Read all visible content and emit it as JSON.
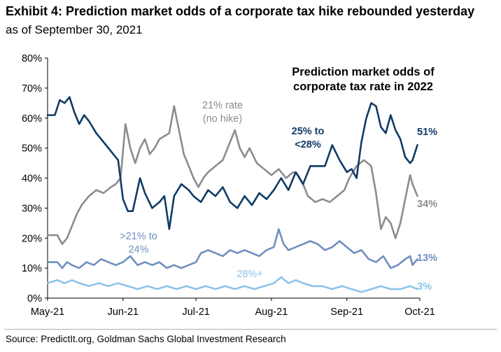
{
  "title": "Exhibit 4: Prediction market odds of a corporate tax hike rebounded yesterday",
  "subtitle": "as of September 30, 2021",
  "source": "Source: PredictIt.org, Goldman Sachs Global Investment Research",
  "chart_data": {
    "type": "line",
    "title": [
      "Prediction market odds of",
      "corporate tax rate in 2022"
    ],
    "xlabel": "",
    "ylabel": "",
    "ylim": [
      0,
      80
    ],
    "grid": false,
    "y_ticks": [
      "0%",
      "10%",
      "20%",
      "30%",
      "40%",
      "50%",
      "60%",
      "70%",
      "80%"
    ],
    "x_ticks": [
      "May-21",
      "Jun-21",
      "Jul-21",
      "Aug-21",
      "Sep-21",
      "Oct-21"
    ],
    "x_tick_dates": [
      "2021-05-01",
      "2021-06-01",
      "2021-07-01",
      "2021-08-01",
      "2021-09-01",
      "2021-10-01"
    ],
    "series": [
      {
        "name": "21% rate (no hike)",
        "label": [
          "21% rate",
          "(no hike)"
        ],
        "color": "#8c8c8c",
        "end_label": "34%",
        "points": [
          [
            "2021-05-01",
            21
          ],
          [
            "2021-05-05",
            21
          ],
          [
            "2021-05-07",
            18
          ],
          [
            "2021-05-09",
            20
          ],
          [
            "2021-05-11",
            24
          ],
          [
            "2021-05-13",
            28
          ],
          [
            "2021-05-15",
            31
          ],
          [
            "2021-05-18",
            34
          ],
          [
            "2021-05-21",
            36
          ],
          [
            "2021-05-24",
            35
          ],
          [
            "2021-05-27",
            37
          ],
          [
            "2021-05-29",
            38
          ],
          [
            "2021-05-31",
            40
          ],
          [
            "2021-06-02",
            58
          ],
          [
            "2021-06-04",
            50
          ],
          [
            "2021-06-06",
            45
          ],
          [
            "2021-06-08",
            50
          ],
          [
            "2021-06-10",
            53
          ],
          [
            "2021-06-12",
            48
          ],
          [
            "2021-06-14",
            50
          ],
          [
            "2021-06-16",
            53
          ],
          [
            "2021-06-18",
            54
          ],
          [
            "2021-06-20",
            55
          ],
          [
            "2021-06-22",
            64
          ],
          [
            "2021-06-24",
            56
          ],
          [
            "2021-06-26",
            48
          ],
          [
            "2021-06-28",
            44
          ],
          [
            "2021-06-30",
            40
          ],
          [
            "2021-07-02",
            37
          ],
          [
            "2021-07-04",
            40
          ],
          [
            "2021-07-06",
            42
          ],
          [
            "2021-07-09",
            44
          ],
          [
            "2021-07-12",
            46
          ],
          [
            "2021-07-15",
            52
          ],
          [
            "2021-07-17",
            56
          ],
          [
            "2021-07-19",
            50
          ],
          [
            "2021-07-21",
            47
          ],
          [
            "2021-07-23",
            50
          ],
          [
            "2021-07-26",
            45
          ],
          [
            "2021-07-29",
            43
          ],
          [
            "2021-08-01",
            41
          ],
          [
            "2021-08-04",
            43
          ],
          [
            "2021-08-07",
            40
          ],
          [
            "2021-08-10",
            42
          ],
          [
            "2021-08-12",
            41
          ],
          [
            "2021-08-14",
            38
          ],
          [
            "2021-08-16",
            34
          ],
          [
            "2021-08-19",
            32
          ],
          [
            "2021-08-22",
            33
          ],
          [
            "2021-08-25",
            32
          ],
          [
            "2021-08-28",
            34
          ],
          [
            "2021-08-31",
            36
          ],
          [
            "2021-09-02",
            40
          ],
          [
            "2021-09-05",
            44
          ],
          [
            "2021-09-08",
            46
          ],
          [
            "2021-09-11",
            44
          ],
          [
            "2021-09-13",
            35
          ],
          [
            "2021-09-15",
            23
          ],
          [
            "2021-09-17",
            27
          ],
          [
            "2021-09-19",
            25
          ],
          [
            "2021-09-21",
            20
          ],
          [
            "2021-09-23",
            25
          ],
          [
            "2021-09-25",
            33
          ],
          [
            "2021-09-27",
            41
          ],
          [
            "2021-09-28",
            38
          ],
          [
            "2021-09-30",
            34
          ]
        ]
      },
      {
        "name": "25% to <28%",
        "label": [
          "25% to",
          "<28%"
        ],
        "color": "#0f3b66",
        "end_label": "51%",
        "points": [
          [
            "2021-05-01",
            61
          ],
          [
            "2021-05-04",
            61
          ],
          [
            "2021-05-06",
            66
          ],
          [
            "2021-05-08",
            65
          ],
          [
            "2021-05-10",
            67
          ],
          [
            "2021-05-12",
            62
          ],
          [
            "2021-05-14",
            58
          ],
          [
            "2021-05-16",
            61
          ],
          [
            "2021-05-18",
            59
          ],
          [
            "2021-05-21",
            55
          ],
          [
            "2021-05-24",
            52
          ],
          [
            "2021-05-27",
            49
          ],
          [
            "2021-05-30",
            46
          ],
          [
            "2021-06-01",
            33
          ],
          [
            "2021-06-03",
            29
          ],
          [
            "2021-06-05",
            29
          ],
          [
            "2021-06-08",
            40
          ],
          [
            "2021-06-10",
            35
          ],
          [
            "2021-06-13",
            30
          ],
          [
            "2021-06-16",
            32
          ],
          [
            "2021-06-18",
            34
          ],
          [
            "2021-06-20",
            23
          ],
          [
            "2021-06-22",
            34
          ],
          [
            "2021-06-25",
            38
          ],
          [
            "2021-06-28",
            36
          ],
          [
            "2021-06-30",
            34
          ],
          [
            "2021-07-03",
            32
          ],
          [
            "2021-07-06",
            36
          ],
          [
            "2021-07-09",
            34
          ],
          [
            "2021-07-12",
            37
          ],
          [
            "2021-07-15",
            32
          ],
          [
            "2021-07-18",
            30
          ],
          [
            "2021-07-21",
            34
          ],
          [
            "2021-07-24",
            31
          ],
          [
            "2021-07-27",
            35
          ],
          [
            "2021-07-30",
            33
          ],
          [
            "2021-08-02",
            36
          ],
          [
            "2021-08-05",
            40
          ],
          [
            "2021-08-08",
            36
          ],
          [
            "2021-08-11",
            42
          ],
          [
            "2021-08-14",
            38
          ],
          [
            "2021-08-17",
            44
          ],
          [
            "2021-08-20",
            44
          ],
          [
            "2021-08-23",
            44
          ],
          [
            "2021-08-26",
            51
          ],
          [
            "2021-08-29",
            46
          ],
          [
            "2021-09-01",
            42
          ],
          [
            "2021-09-03",
            43
          ],
          [
            "2021-09-05",
            40
          ],
          [
            "2021-09-07",
            52
          ],
          [
            "2021-09-09",
            60
          ],
          [
            "2021-09-11",
            65
          ],
          [
            "2021-09-13",
            64
          ],
          [
            "2021-09-15",
            57
          ],
          [
            "2021-09-17",
            55
          ],
          [
            "2021-09-19",
            61
          ],
          [
            "2021-09-21",
            56
          ],
          [
            "2021-09-23",
            53
          ],
          [
            "2021-09-25",
            47
          ],
          [
            "2021-09-27",
            45
          ],
          [
            "2021-09-28",
            46
          ],
          [
            "2021-09-30",
            51
          ]
        ]
      },
      {
        "name": ">21% to 24%",
        "label": [
          ">21% to",
          "24%"
        ],
        "color": "#6f8fbf",
        "end_label": "13%",
        "points": [
          [
            "2021-05-01",
            12
          ],
          [
            "2021-05-05",
            12
          ],
          [
            "2021-05-07",
            10
          ],
          [
            "2021-05-09",
            12
          ],
          [
            "2021-05-11",
            11
          ],
          [
            "2021-05-14",
            10
          ],
          [
            "2021-05-17",
            12
          ],
          [
            "2021-05-20",
            11
          ],
          [
            "2021-05-23",
            13
          ],
          [
            "2021-05-26",
            12
          ],
          [
            "2021-05-29",
            11
          ],
          [
            "2021-06-01",
            12
          ],
          [
            "2021-06-04",
            14
          ],
          [
            "2021-06-07",
            11
          ],
          [
            "2021-06-10",
            12
          ],
          [
            "2021-06-13",
            11
          ],
          [
            "2021-06-16",
            12
          ],
          [
            "2021-06-19",
            10
          ],
          [
            "2021-06-22",
            11
          ],
          [
            "2021-06-25",
            10
          ],
          [
            "2021-06-28",
            11
          ],
          [
            "2021-07-01",
            12
          ],
          [
            "2021-07-03",
            15
          ],
          [
            "2021-07-06",
            16
          ],
          [
            "2021-07-09",
            15
          ],
          [
            "2021-07-12",
            14
          ],
          [
            "2021-07-15",
            16
          ],
          [
            "2021-07-18",
            15
          ],
          [
            "2021-07-21",
            16
          ],
          [
            "2021-07-24",
            15
          ],
          [
            "2021-07-27",
            14
          ],
          [
            "2021-07-30",
            16
          ],
          [
            "2021-08-02",
            17
          ],
          [
            "2021-08-04",
            23
          ],
          [
            "2021-08-06",
            18
          ],
          [
            "2021-08-08",
            16
          ],
          [
            "2021-08-11",
            17
          ],
          [
            "2021-08-14",
            18
          ],
          [
            "2021-08-17",
            19
          ],
          [
            "2021-08-20",
            18
          ],
          [
            "2021-08-23",
            16
          ],
          [
            "2021-08-26",
            17
          ],
          [
            "2021-08-29",
            19
          ],
          [
            "2021-09-01",
            17
          ],
          [
            "2021-09-04",
            15
          ],
          [
            "2021-09-07",
            16
          ],
          [
            "2021-09-10",
            13
          ],
          [
            "2021-09-13",
            12
          ],
          [
            "2021-09-16",
            14
          ],
          [
            "2021-09-19",
            10
          ],
          [
            "2021-09-22",
            11
          ],
          [
            "2021-09-25",
            13
          ],
          [
            "2021-09-27",
            14
          ],
          [
            "2021-09-28",
            11
          ],
          [
            "2021-09-30",
            13
          ]
        ]
      },
      {
        "name": "28%+",
        "label": [
          "28%+"
        ],
        "color": "#8dc3e8",
        "end_label": "3%",
        "points": [
          [
            "2021-05-01",
            5
          ],
          [
            "2021-05-05",
            6
          ],
          [
            "2021-05-08",
            5
          ],
          [
            "2021-05-11",
            6
          ],
          [
            "2021-05-14",
            5
          ],
          [
            "2021-05-18",
            4
          ],
          [
            "2021-05-22",
            5
          ],
          [
            "2021-05-26",
            4
          ],
          [
            "2021-05-30",
            5
          ],
          [
            "2021-06-03",
            4
          ],
          [
            "2021-06-07",
            3
          ],
          [
            "2021-06-11",
            4
          ],
          [
            "2021-06-15",
            3
          ],
          [
            "2021-06-19",
            4
          ],
          [
            "2021-06-23",
            3
          ],
          [
            "2021-06-27",
            4
          ],
          [
            "2021-07-01",
            3
          ],
          [
            "2021-07-05",
            4
          ],
          [
            "2021-07-09",
            3
          ],
          [
            "2021-07-13",
            4
          ],
          [
            "2021-07-17",
            3
          ],
          [
            "2021-07-21",
            4
          ],
          [
            "2021-07-25",
            3
          ],
          [
            "2021-07-29",
            4
          ],
          [
            "2021-08-02",
            5
          ],
          [
            "2021-08-05",
            7
          ],
          [
            "2021-08-08",
            5
          ],
          [
            "2021-08-11",
            6
          ],
          [
            "2021-08-14",
            5
          ],
          [
            "2021-08-18",
            4
          ],
          [
            "2021-08-22",
            4
          ],
          [
            "2021-08-26",
            3
          ],
          [
            "2021-08-30",
            4
          ],
          [
            "2021-09-03",
            3
          ],
          [
            "2021-09-07",
            2
          ],
          [
            "2021-09-11",
            3
          ],
          [
            "2021-09-15",
            4
          ],
          [
            "2021-09-19",
            3
          ],
          [
            "2021-09-23",
            3
          ],
          [
            "2021-09-27",
            4
          ],
          [
            "2021-09-30",
            3
          ]
        ]
      }
    ]
  }
}
